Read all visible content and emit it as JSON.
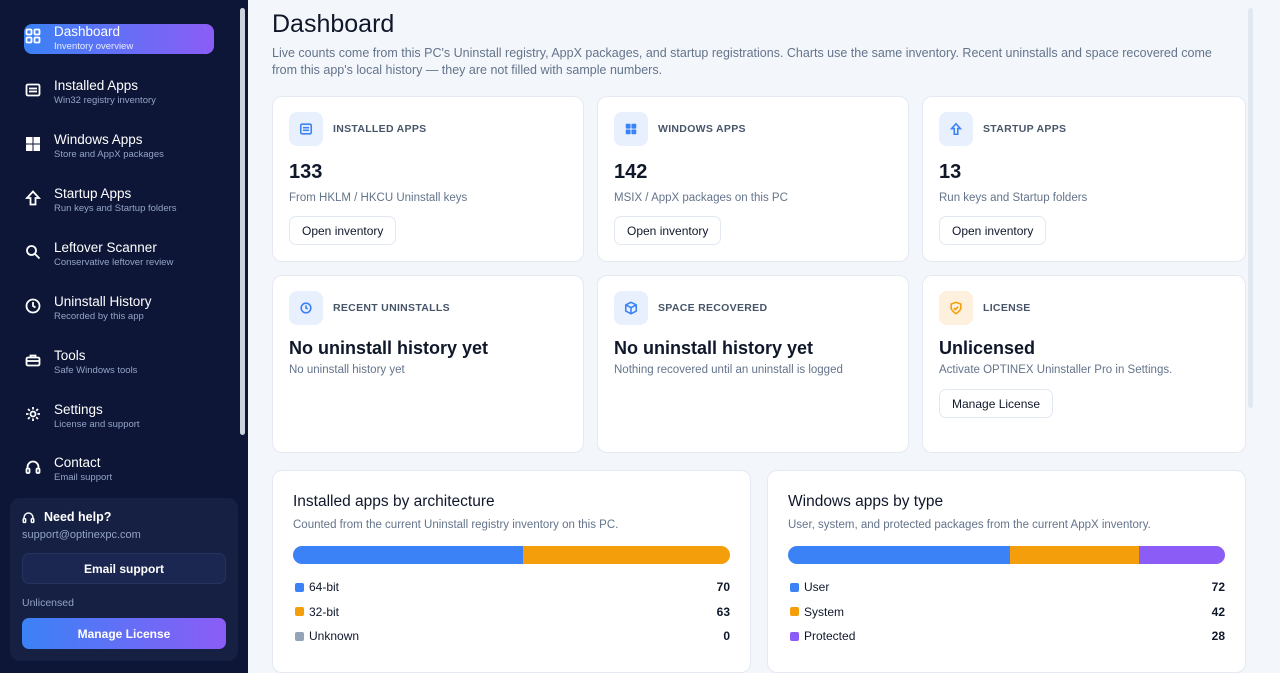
{
  "sidebar": {
    "items": [
      {
        "label": "Dashboard",
        "sub": "Inventory overview",
        "icon": "grid-icon"
      },
      {
        "label": "Installed Apps",
        "sub": "Win32 registry inventory",
        "icon": "list-icon"
      },
      {
        "label": "Windows Apps",
        "sub": "Store and AppX packages",
        "icon": "windows-icon"
      },
      {
        "label": "Startup Apps",
        "sub": "Run keys and Startup folders",
        "icon": "arrow-up-icon"
      },
      {
        "label": "Leftover Scanner",
        "sub": "Conservative leftover review",
        "icon": "search-icon"
      },
      {
        "label": "Uninstall History",
        "sub": "Recorded by this app",
        "icon": "clock-icon"
      },
      {
        "label": "Tools",
        "sub": "Safe Windows tools",
        "icon": "toolbox-icon"
      },
      {
        "label": "Settings",
        "sub": "License and support",
        "icon": "gear-icon"
      },
      {
        "label": "Contact",
        "sub": "Email support",
        "icon": "headset-icon"
      }
    ],
    "help": {
      "title": "Need help?",
      "email": "support@optinexpc.com",
      "email_button": "Email support",
      "license_status": "Unlicensed",
      "manage_button": "Manage License"
    }
  },
  "header": {
    "title": "Dashboard",
    "description": "Live counts come from this PC's Uninstall registry, AppX packages, and startup registrations. Charts use the same inventory. Recent uninstalls and space recovered come from this app's local history — they are not filled with sample numbers."
  },
  "cards": [
    {
      "label": "INSTALLED APPS",
      "value": "133",
      "sub": "From HKLM / HKCU Uninstall keys",
      "button": "Open inventory",
      "icon": "list-icon"
    },
    {
      "label": "WINDOWS APPS",
      "value": "142",
      "sub": "MSIX / AppX packages on this PC",
      "button": "Open inventory",
      "icon": "windows-icon"
    },
    {
      "label": "STARTUP APPS",
      "value": "13",
      "sub": "Run keys and Startup folders",
      "button": "Open inventory",
      "icon": "arrow-up-icon"
    },
    {
      "label": "RECENT UNINSTALLS",
      "value": "No uninstall history yet",
      "sub": "No uninstall history yet",
      "icon": "clock-icon"
    },
    {
      "label": "SPACE RECOVERED",
      "value": "No uninstall history yet",
      "sub": "Nothing recovered until an uninstall is logged",
      "icon": "box-icon"
    },
    {
      "label": "LICENSE",
      "value": "Unlicensed",
      "sub": "Activate OPTINEX Uninstaller Pro in Settings.",
      "button": "Manage License",
      "icon": "shield-icon"
    }
  ],
  "colors": {
    "blue": "#3b82f6",
    "orange": "#f59e0b",
    "gray": "#94a3b8",
    "purple": "#8b5cf6",
    "accent_start": "#3b82f6",
    "accent_end": "#8b5cf6"
  },
  "chart_data": [
    {
      "type": "bar",
      "title": "Installed apps by architecture",
      "subtitle": "Counted from the current Uninstall registry inventory on this PC.",
      "series": [
        {
          "name": "64-bit",
          "value": 70,
          "color": "#3b82f6"
        },
        {
          "name": "32-bit",
          "value": 63,
          "color": "#f59e0b"
        },
        {
          "name": "Unknown",
          "value": 0,
          "color": "#94a3b8"
        }
      ]
    },
    {
      "type": "bar",
      "title": "Windows apps by type",
      "subtitle": "User, system, and protected packages from the current AppX inventory.",
      "series": [
        {
          "name": "User",
          "value": 72,
          "color": "#3b82f6"
        },
        {
          "name": "System",
          "value": 42,
          "color": "#f59e0b"
        },
        {
          "name": "Protected",
          "value": 28,
          "color": "#8b5cf6"
        }
      ]
    }
  ]
}
